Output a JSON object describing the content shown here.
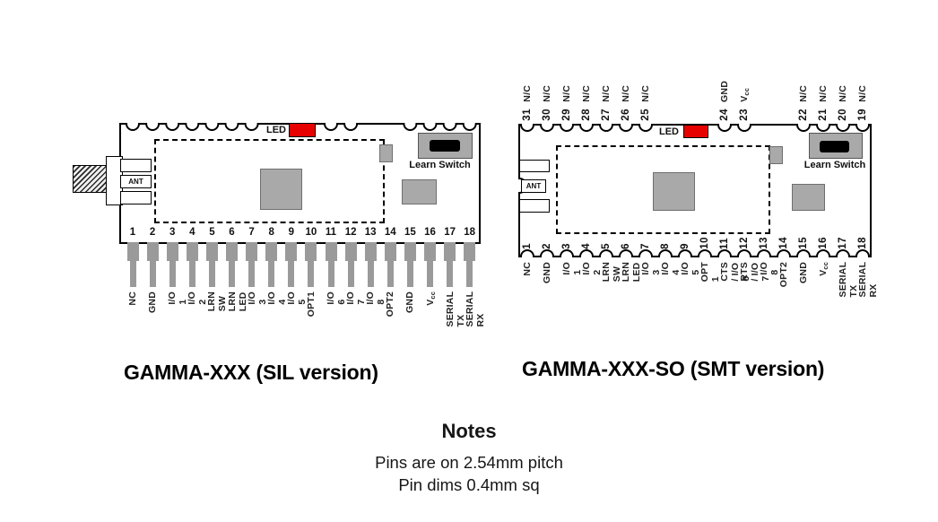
{
  "colors": {
    "led_red": "#e60000",
    "component_gray": "#a9a9a9",
    "pin_gray": "#9a9a9a",
    "outline_black": "#000000"
  },
  "modules": [
    {
      "title": "GAMMA-XXX (SIL version)",
      "led_label": "LED",
      "ant_label": "ANT",
      "learn_switch_label": "Learn Switch",
      "top_pins": [],
      "bottom_pins": [
        {
          "num": "1",
          "label": "NC"
        },
        {
          "num": "2",
          "label": "GND"
        },
        {
          "num": "3",
          "label": "I/O 1"
        },
        {
          "num": "4",
          "label": "I/O 2"
        },
        {
          "num": "5",
          "label": "LRN SW"
        },
        {
          "num": "6",
          "label": "LRN LED"
        },
        {
          "num": "7",
          "label": "I/O 3"
        },
        {
          "num": "8",
          "label": "I/O 4"
        },
        {
          "num": "9",
          "label": "I/O 5"
        },
        {
          "num": "10",
          "label": "OPT1"
        },
        {
          "num": "11",
          "label": "I/O 6"
        },
        {
          "num": "12",
          "label": "I/O 7"
        },
        {
          "num": "13",
          "label": "I/O 8"
        },
        {
          "num": "14",
          "label": "OPT2"
        },
        {
          "num": "15",
          "label": "GND"
        },
        {
          "num": "16",
          "label": "Vcc"
        },
        {
          "num": "17",
          "label": "SERIAL TX"
        },
        {
          "num": "18",
          "label": "SERIAL RX"
        }
      ]
    },
    {
      "title": "GAMMA-XXX-SO (SMT version)",
      "led_label": "LED",
      "ant_label": "ANT",
      "learn_switch_label": "Learn Switch",
      "top_pins": [
        {
          "num": "31",
          "label": "N/C"
        },
        {
          "num": "30",
          "label": "N/C"
        },
        {
          "num": "29",
          "label": "N/C"
        },
        {
          "num": "28",
          "label": "N/C"
        },
        {
          "num": "27",
          "label": "N/C"
        },
        {
          "num": "26",
          "label": "N/C"
        },
        {
          "num": "25",
          "label": "N/C"
        },
        {
          "num": "24",
          "label": "GND"
        },
        {
          "num": "23",
          "label": "Vcc"
        },
        {
          "num": "22",
          "label": "N/C"
        },
        {
          "num": "21",
          "label": "N/C"
        },
        {
          "num": "20",
          "label": "N/C"
        },
        {
          "num": "19",
          "label": "N/C"
        }
      ],
      "bottom_pins": [
        {
          "num": "1",
          "label": "NC"
        },
        {
          "num": "2",
          "label": "GND"
        },
        {
          "num": "3",
          "label": "I/O 1"
        },
        {
          "num": "4",
          "label": "I/O 2"
        },
        {
          "num": "5",
          "label": "LRN SW"
        },
        {
          "num": "6",
          "label": "LRN LED"
        },
        {
          "num": "7",
          "label": "I/O 3"
        },
        {
          "num": "8",
          "label": "I/O 4"
        },
        {
          "num": "9",
          "label": "I/O 5"
        },
        {
          "num": "10",
          "label": "OPT 1"
        },
        {
          "num": "11",
          "label": "CTS / I/O 6"
        },
        {
          "num": "12",
          "label": "RTS / I/O 7"
        },
        {
          "num": "13",
          "label": "I/O 8"
        },
        {
          "num": "14",
          "label": "OPT2"
        },
        {
          "num": "15",
          "label": "GND"
        },
        {
          "num": "16",
          "label": "Vcc"
        },
        {
          "num": "17",
          "label": "SERIAL TX"
        },
        {
          "num": "18",
          "label": "SERIAL RX"
        }
      ]
    }
  ],
  "notes": {
    "heading": "Notes",
    "lines": [
      "Pins are on 2.54mm pitch",
      "Pin dims 0.4mm sq"
    ]
  }
}
